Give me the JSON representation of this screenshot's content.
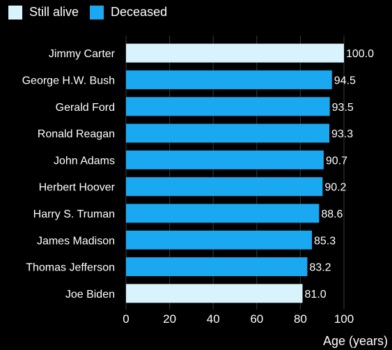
{
  "chart_data": {
    "type": "bar",
    "orientation": "horizontal",
    "legend": [
      {
        "name": "Still alive",
        "color": "#d8f3fb"
      },
      {
        "name": "Deceased",
        "color": "#1aa9f0"
      }
    ],
    "legend_position": "top-left",
    "categories": [
      "Jimmy Carter",
      "George H.W. Bush",
      "Gerald Ford",
      "Ronald Reagan",
      "John Adams",
      "Herbert Hoover",
      "Harry S. Truman",
      "James Madison",
      "Thomas Jefferson",
      "Joe Biden"
    ],
    "values": [
      100.0,
      94.5,
      93.5,
      93.3,
      90.7,
      90.2,
      88.6,
      85.3,
      83.2,
      81.0
    ],
    "value_labels": [
      "100.0",
      "94.5",
      "93.5",
      "93.3",
      "90.7",
      "90.2",
      "88.6",
      "85.3",
      "83.2",
      "81.0"
    ],
    "status": [
      "Still alive",
      "Deceased",
      "Deceased",
      "Deceased",
      "Deceased",
      "Deceased",
      "Deceased",
      "Deceased",
      "Deceased",
      "Still alive"
    ],
    "xlim": [
      0,
      100
    ],
    "xticks": [
      "0",
      "20",
      "40",
      "60",
      "80",
      "100"
    ],
    "xlabel": "Age (years)",
    "title": "",
    "grid": true
  }
}
